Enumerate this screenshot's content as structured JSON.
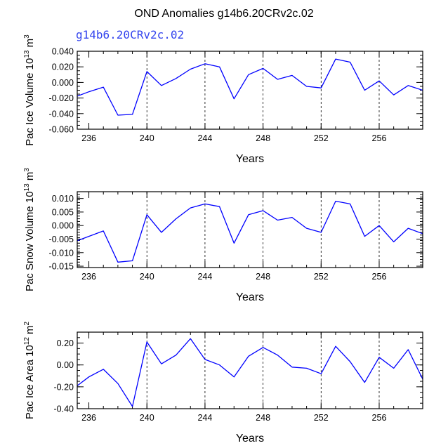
{
  "chart_data": {
    "title": "OND Anomalies g14b6.20CRv2c.02",
    "case_label": "g14b6.20CRv2c.02",
    "line_color": "#0000ff",
    "panels": [
      {
        "type": "line",
        "ylabel": {
          "text": "Pac Ice Volume 10",
          "exp": "13",
          "unit": " m",
          "unit_exp": "3"
        },
        "xlabel": "Years",
        "xlim": [
          235.2,
          259.0
        ],
        "ylim": [
          -0.06,
          0.04
        ],
        "xticks": [
          236,
          240,
          244,
          248,
          252,
          256
        ],
        "xtick_labels": [
          "236",
          "240",
          "244",
          "248",
          "252",
          "256"
        ],
        "yticks": [
          -0.06,
          -0.04,
          -0.02,
          0.0,
          0.02,
          0.04
        ],
        "ytick_labels": [
          "-0.060",
          "-0.040",
          "-0.020",
          "0.000",
          "0.020",
          "0.040"
        ],
        "grid_x": [
          240,
          244,
          248,
          252,
          256
        ],
        "series": [
          {
            "x": [
              235,
              236,
              237,
              238,
              239,
              240,
              241,
              242,
              243,
              244,
              245,
              246,
              247,
              248,
              249,
              250,
              251,
              252,
              253,
              254,
              255,
              256,
              257,
              258,
              259
            ],
            "values": [
              -0.019,
              -0.012,
              -0.006,
              -0.042,
              -0.041,
              0.014,
              -0.004,
              0.005,
              0.017,
              0.024,
              0.02,
              -0.021,
              0.01,
              0.018,
              0.004,
              0.009,
              -0.005,
              -0.007,
              0.03,
              0.026,
              -0.01,
              0.002,
              -0.016,
              -0.004,
              -0.01
            ]
          }
        ]
      },
      {
        "type": "line",
        "ylabel": {
          "text": "Pac Snow Volume 10",
          "exp": "13",
          "unit": " m",
          "unit_exp": "3"
        },
        "xlabel": "Years",
        "xlim": [
          235.2,
          259.0
        ],
        "ylim": [
          -0.0155,
          0.0125
        ],
        "xticks": [
          236,
          240,
          244,
          248,
          252,
          256
        ],
        "xtick_labels": [
          "236",
          "240",
          "244",
          "248",
          "252",
          "256"
        ],
        "yticks": [
          -0.015,
          -0.01,
          -0.005,
          0.0,
          0.005,
          0.01
        ],
        "ytick_labels": [
          "-0.015",
          "-0.010",
          "-0.005",
          "0.000",
          "0.005",
          "0.010"
        ],
        "grid_x": [
          240,
          244,
          248,
          252,
          256
        ],
        "series": [
          {
            "x": [
              235,
              236,
              237,
              238,
              239,
              240,
              241,
              242,
              243,
              244,
              245,
              246,
              247,
              248,
              249,
              250,
              251,
              252,
              253,
              254,
              255,
              256,
              257,
              258,
              259
            ],
            "values": [
              -0.006,
              -0.004,
              -0.002,
              -0.0135,
              -0.013,
              0.004,
              -0.0025,
              0.0025,
              0.0065,
              0.008,
              0.007,
              -0.0065,
              0.004,
              0.0055,
              0.002,
              0.003,
              -0.001,
              -0.0025,
              0.009,
              0.008,
              -0.004,
              0.0,
              -0.006,
              -0.001,
              -0.003
            ]
          }
        ]
      },
      {
        "type": "line",
        "ylabel": {
          "text": "Pac Ice Area 10",
          "exp": "12",
          "unit": " m",
          "unit_exp": "2"
        },
        "xlabel": "Years",
        "xlim": [
          235.2,
          259.0
        ],
        "ylim": [
          -0.4,
          0.3
        ],
        "xticks": [
          236,
          240,
          244,
          248,
          252,
          256
        ],
        "xtick_labels": [
          "236",
          "240",
          "244",
          "248",
          "252",
          "256"
        ],
        "yticks": [
          -0.4,
          -0.2,
          0.0,
          0.2
        ],
        "ytick_labels": [
          "-0.40",
          "-0.20",
          "0.00",
          "0.20"
        ],
        "grid_x": [
          240,
          244,
          248,
          252,
          256
        ],
        "series": [
          {
            "x": [
              235,
              236,
              237,
              238,
              239,
              240,
              241,
              242,
              243,
              244,
              245,
              246,
              247,
              248,
              249,
              250,
              251,
              252,
              253,
              254,
              255,
              256,
              257,
              258,
              259
            ],
            "values": [
              -0.21,
              -0.11,
              -0.04,
              -0.17,
              -0.38,
              0.21,
              0.01,
              0.09,
              0.24,
              0.05,
              0.0,
              -0.11,
              0.08,
              0.16,
              0.09,
              -0.02,
              -0.03,
              -0.08,
              0.17,
              0.03,
              -0.16,
              0.07,
              -0.03,
              0.14,
              -0.13
            ]
          }
        ]
      }
    ]
  }
}
